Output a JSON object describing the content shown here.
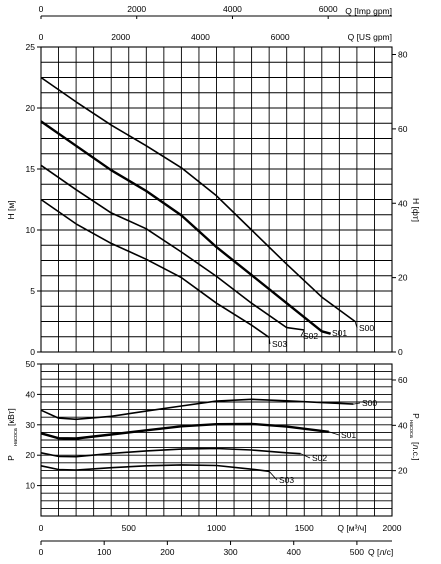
{
  "chart_data": [
    {
      "type": "line",
      "title": "",
      "xlabel": "Q [US gpm]",
      "xlabel_top": "Q [Imp gpm]",
      "ylabel_left": "H [м]",
      "ylabel_right": "H [фт]",
      "xlim": [
        0,
        8900
      ],
      "ylim": [
        0,
        25
      ],
      "ylim_right": [
        0,
        82
      ],
      "xticks_us_gpm": [
        0,
        2000,
        4000,
        6000
      ],
      "xticks_imp_gpm": [
        0,
        2000,
        4000,
        6000
      ],
      "yticks_left": [
        0,
        5,
        10,
        15,
        20,
        25
      ],
      "yticks_right": [
        0,
        20,
        40,
        60,
        80
      ],
      "grid": true,
      "series": [
        {
          "name": "S00",
          "x_m3h": [
            0,
            200,
            400,
            600,
            800,
            1000,
            1200,
            1400,
            1600,
            1790
          ],
          "y_m": [
            22.5,
            20.5,
            18.6,
            16.9,
            15.1,
            12.8,
            10.0,
            7.2,
            4.5,
            2.5
          ]
        },
        {
          "name": "S01",
          "x_m3h": [
            0,
            200,
            400,
            600,
            800,
            1000,
            1200,
            1400,
            1600,
            1650
          ],
          "y_m": [
            18.9,
            16.9,
            14.9,
            13.2,
            11.2,
            8.6,
            6.3,
            4.0,
            1.7,
            1.5
          ]
        },
        {
          "name": "S02",
          "x_m3h": [
            0,
            200,
            400,
            600,
            800,
            1000,
            1200,
            1400,
            1500
          ],
          "y_m": [
            15.3,
            13.3,
            11.4,
            10.1,
            8.2,
            6.2,
            4.0,
            2.0,
            1.8
          ]
        },
        {
          "name": "S03",
          "x_m3h": [
            0,
            200,
            400,
            600,
            800,
            1000,
            1200,
            1300
          ],
          "y_m": [
            12.5,
            10.5,
            8.9,
            7.6,
            6.1,
            4.0,
            2.2,
            1.2
          ]
        }
      ]
    },
    {
      "type": "line",
      "title": "",
      "xlabel": "Q [м³/ч]",
      "xlabel2": "Q [л/с]",
      "ylabel_left": "P насоса [кВт]",
      "ylabel_right": "P насоса [л.с.]",
      "xlim": [
        0,
        2000
      ],
      "ylim": [
        0,
        50
      ],
      "ylim_right": [
        0,
        67
      ],
      "xticks_m3h": [
        0,
        500,
        1000,
        1500,
        2000
      ],
      "xticks_ls": [
        0,
        100,
        200,
        300,
        400,
        500
      ],
      "yticks_left": [
        10,
        20,
        30,
        40,
        50
      ],
      "yticks_right": [
        20,
        40,
        60
      ],
      "grid": true,
      "series": [
        {
          "name": "S00",
          "x_m3h": [
            0,
            100,
            200,
            400,
            600,
            800,
            1000,
            1200,
            1400,
            1600,
            1780
          ],
          "y_kW": [
            34.8,
            32.2,
            31.8,
            32.8,
            34.5,
            36.2,
            37.8,
            38.4,
            37.9,
            37.3,
            36.8
          ]
        },
        {
          "name": "S01",
          "x_m3h": [
            0,
            100,
            200,
            400,
            600,
            800,
            1000,
            1200,
            1400,
            1640
          ],
          "y_kW": [
            27.2,
            25.6,
            25.5,
            26.8,
            28.2,
            29.5,
            30.2,
            30.3,
            29.4,
            27.7
          ]
        },
        {
          "name": "S02",
          "x_m3h": [
            0,
            100,
            200,
            400,
            600,
            800,
            1000,
            1200,
            1400,
            1480
          ],
          "y_kW": [
            20.8,
            19.6,
            19.5,
            20.6,
            21.4,
            22.0,
            22.2,
            21.7,
            20.8,
            20.5
          ]
        },
        {
          "name": "S03",
          "x_m3h": [
            0,
            100,
            200,
            400,
            600,
            800,
            1000,
            1200,
            1300
          ],
          "y_kW": [
            16.5,
            15.3,
            15.1,
            15.9,
            16.5,
            16.8,
            16.6,
            15.4,
            14.7
          ]
        }
      ]
    }
  ],
  "labels": {
    "top_axis_title": "Q [Imp gpm]",
    "second_axis_title": "Q [US gpm]",
    "top_ticks": [
      "0",
      "2000",
      "4000",
      "6000"
    ],
    "second_ticks": [
      "0",
      "2000",
      "4000",
      "6000"
    ],
    "h_left_title": "H [м]",
    "h_right_title": "H [фт]",
    "h_left_ticks": [
      "0",
      "5",
      "10",
      "15",
      "20",
      "25"
    ],
    "h_right_ticks": [
      "0",
      "20",
      "40",
      "60",
      "80"
    ],
    "p_left_title_main": "P",
    "p_left_title_sub": "насоса",
    "p_left_title_unit": "[кВт]",
    "p_right_title_main": "P",
    "p_right_title_sub": "насоса",
    "p_right_title_unit": "[л.с.]",
    "p_left_ticks": [
      "10",
      "20",
      "30",
      "40",
      "50"
    ],
    "p_right_ticks": [
      "20",
      "40",
      "60"
    ],
    "m3h_title": "Q [м³/ч]",
    "m3h_ticks": [
      "0",
      "500",
      "1000",
      "1500",
      "2000"
    ],
    "ls_title": "Q [л/с]",
    "ls_ticks": [
      "0",
      "100",
      "200",
      "300",
      "400",
      "500"
    ],
    "series_labels": [
      "S00",
      "S01",
      "S02",
      "S03"
    ]
  }
}
